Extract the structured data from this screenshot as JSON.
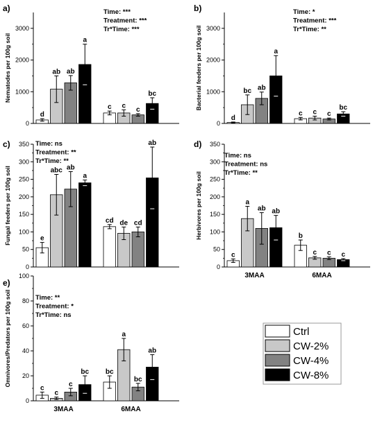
{
  "series_names": [
    "Ctrl",
    "CW-2%",
    "CW-4%",
    "CW-8%"
  ],
  "series_colors": [
    "#ffffff",
    "#c8c8c8",
    "#828282",
    "#000000"
  ],
  "legend": {
    "placement": "bottom-right",
    "entries": [
      "Ctrl",
      "CW-2%",
      "CW-4%",
      "CW-8%"
    ]
  },
  "chart_data": [
    {
      "panel_label": "a)",
      "type": "bar",
      "ylabel": "Nematodes per 100g soil",
      "ylim": [
        0,
        3500
      ],
      "yticks": [
        "0",
        "1000",
        "2000",
        "3000"
      ],
      "categories": [
        "",
        ""
      ],
      "stats": [
        "Time: ***",
        "Treatment: ***",
        "Tr*Time: ***"
      ],
      "series": [
        {
          "name": "Ctrl",
          "values": [
            110,
            330
          ],
          "errors": [
            40,
            60
          ],
          "letters": [
            "d",
            "c"
          ]
        },
        {
          "name": "CW-2%",
          "values": [
            1080,
            330
          ],
          "errors": [
            420,
            100
          ],
          "letters": [
            "ab",
            "c"
          ]
        },
        {
          "name": "CW-4%",
          "values": [
            1280,
            270
          ],
          "errors": [
            230,
            40
          ],
          "letters": [
            "ab",
            "c"
          ]
        },
        {
          "name": "CW-8%",
          "values": [
            1860,
            630
          ],
          "errors": [
            640,
            180
          ],
          "letters": [
            "a",
            "bc"
          ]
        }
      ]
    },
    {
      "panel_label": "b)",
      "type": "bar",
      "ylabel": "Bacterial feeders per 100g soil",
      "ylim": [
        0,
        3500
      ],
      "yticks": [
        "0",
        "1000",
        "2000",
        "3000"
      ],
      "categories": [
        "",
        ""
      ],
      "stats": [
        "Time: *",
        "Treatment: ***",
        "Tr*Time: **"
      ],
      "series": [
        {
          "name": "Ctrl",
          "values": [
            30,
            150
          ],
          "errors": [
            15,
            40
          ],
          "letters": [
            "d",
            "c"
          ]
        },
        {
          "name": "CW-2%",
          "values": [
            590,
            170
          ],
          "errors": [
            310,
            60
          ],
          "letters": [
            "bc",
            "c"
          ]
        },
        {
          "name": "CW-4%",
          "values": [
            790,
            140
          ],
          "errors": [
            200,
            30
          ],
          "letters": [
            "ab",
            "c"
          ]
        },
        {
          "name": "CW-8%",
          "values": [
            1500,
            300
          ],
          "errors": [
            640,
            70
          ],
          "letters": [
            "a",
            "bc"
          ]
        }
      ]
    },
    {
      "panel_label": "c)",
      "type": "bar",
      "ylabel": "Fungal feeders per 100g soil",
      "ylim": [
        0,
        350
      ],
      "yticks": [
        "0",
        "50",
        "100",
        "150",
        "200",
        "250",
        "300",
        "350"
      ],
      "categories": [
        "",
        ""
      ],
      "stats": [
        "Time: ns",
        "Treatment: **",
        "Tr*Time: **"
      ],
      "series": [
        {
          "name": "Ctrl",
          "values": [
            55,
            115
          ],
          "errors": [
            15,
            6
          ],
          "letters": [
            "e",
            "cd"
          ]
        },
        {
          "name": "CW-2%",
          "values": [
            206,
            96
          ],
          "errors": [
            58,
            18
          ],
          "letters": [
            "abc",
            "de"
          ]
        },
        {
          "name": "CW-4%",
          "values": [
            222,
            100
          ],
          "errors": [
            50,
            14
          ],
          "letters": [
            "ab",
            "cd"
          ]
        },
        {
          "name": "CW-8%",
          "values": [
            240,
            254
          ],
          "errors": [
            8,
            88
          ],
          "letters": [
            "a",
            "ab"
          ]
        }
      ]
    },
    {
      "panel_label": "d)",
      "type": "bar",
      "ylabel": "Herbivores per 100g soil",
      "ylim": [
        0,
        350
      ],
      "yticks": [
        "0",
        "50",
        "100",
        "150",
        "200",
        "250",
        "300",
        "350"
      ],
      "categories": [
        "3MAA",
        "6MAA"
      ],
      "stats": [
        "Time: ns",
        "Treatment: ns",
        "Tr*Time: **"
      ],
      "series": [
        {
          "name": "Ctrl",
          "values": [
            18,
            62
          ],
          "errors": [
            5,
            15
          ],
          "letters": [
            "c",
            "b"
          ]
        },
        {
          "name": "CW-2%",
          "values": [
            138,
            26
          ],
          "errors": [
            35,
            4
          ],
          "letters": [
            "a",
            "c"
          ]
        },
        {
          "name": "CW-4%",
          "values": [
            110,
            25
          ],
          "errors": [
            45,
            4
          ],
          "letters": [
            "ab",
            "c"
          ]
        },
        {
          "name": "CW-8%",
          "values": [
            112,
            21
          ],
          "errors": [
            35,
            3
          ],
          "letters": [
            "ab",
            "c"
          ]
        }
      ]
    },
    {
      "panel_label": "e)",
      "type": "bar",
      "ylabel": "Omnivores/Predators per 100g soil",
      "ylim": [
        0,
        100
      ],
      "yticks": [
        "0",
        "20",
        "40",
        "60",
        "80",
        "100"
      ],
      "categories": [
        "3MAA",
        "6MAA"
      ],
      "stats": [
        "Time: **",
        "Treatment: *",
        "Tr*Time: ns"
      ],
      "series": [
        {
          "name": "Ctrl",
          "values": [
            4.5,
            15
          ],
          "errors": [
            2.5,
            5
          ],
          "letters": [
            "c",
            "bc"
          ]
        },
        {
          "name": "CW-2%",
          "values": [
            2,
            41
          ],
          "errors": [
            1,
            9
          ],
          "letters": [
            "c",
            "a"
          ]
        },
        {
          "name": "CW-4%",
          "values": [
            7,
            11
          ],
          "errors": [
            3,
            3
          ],
          "letters": [
            "c",
            "bc"
          ]
        },
        {
          "name": "CW-8%",
          "values": [
            13,
            27
          ],
          "errors": [
            7,
            10
          ],
          "letters": [
            "bc",
            "ab"
          ]
        }
      ]
    }
  ]
}
